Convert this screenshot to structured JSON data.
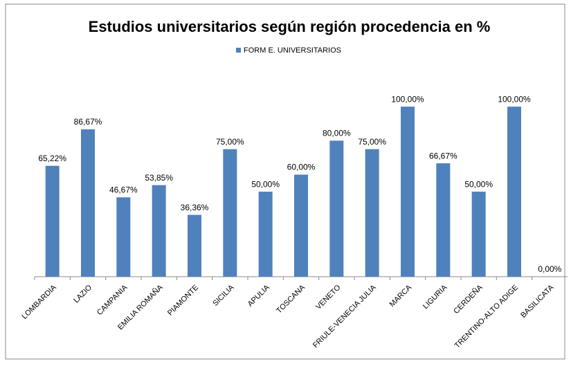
{
  "chart_data": {
    "type": "bar",
    "title": "Estudios universitarios según región procedencia en %",
    "categories": [
      "LOMBARDIA",
      "LAZIO",
      "CAMPANIA",
      "EMILIA ROMAÑA",
      "PIAMONTE",
      "SICILIA",
      "APULIA",
      "TOSCANA",
      "VENETO",
      "FRIULE-VENECIA JULIA",
      "MARCA",
      "LIGURIA",
      "CERDEÑA",
      "TRENTINO-ALTO ADIGE",
      "BASILICATA"
    ],
    "series": [
      {
        "name": "FORM E. UNIVERSITARIOS",
        "color": "#4f81bd",
        "values": [
          65.22,
          86.67,
          46.67,
          53.85,
          36.36,
          75,
          50,
          60,
          80,
          75,
          100,
          66.67,
          50,
          100,
          0
        ],
        "value_labels": [
          "65,22%",
          "86,67%",
          "46,67%",
          "53,85%",
          "36,36%",
          "75,00%",
          "50,00%",
          "60,00%",
          "80,00%",
          "75,00%",
          "100,00%",
          "66,67%",
          "50,00%",
          "100,00%",
          "0,00%"
        ]
      }
    ],
    "ylim": [
      0,
      120
    ],
    "legend": "top"
  }
}
